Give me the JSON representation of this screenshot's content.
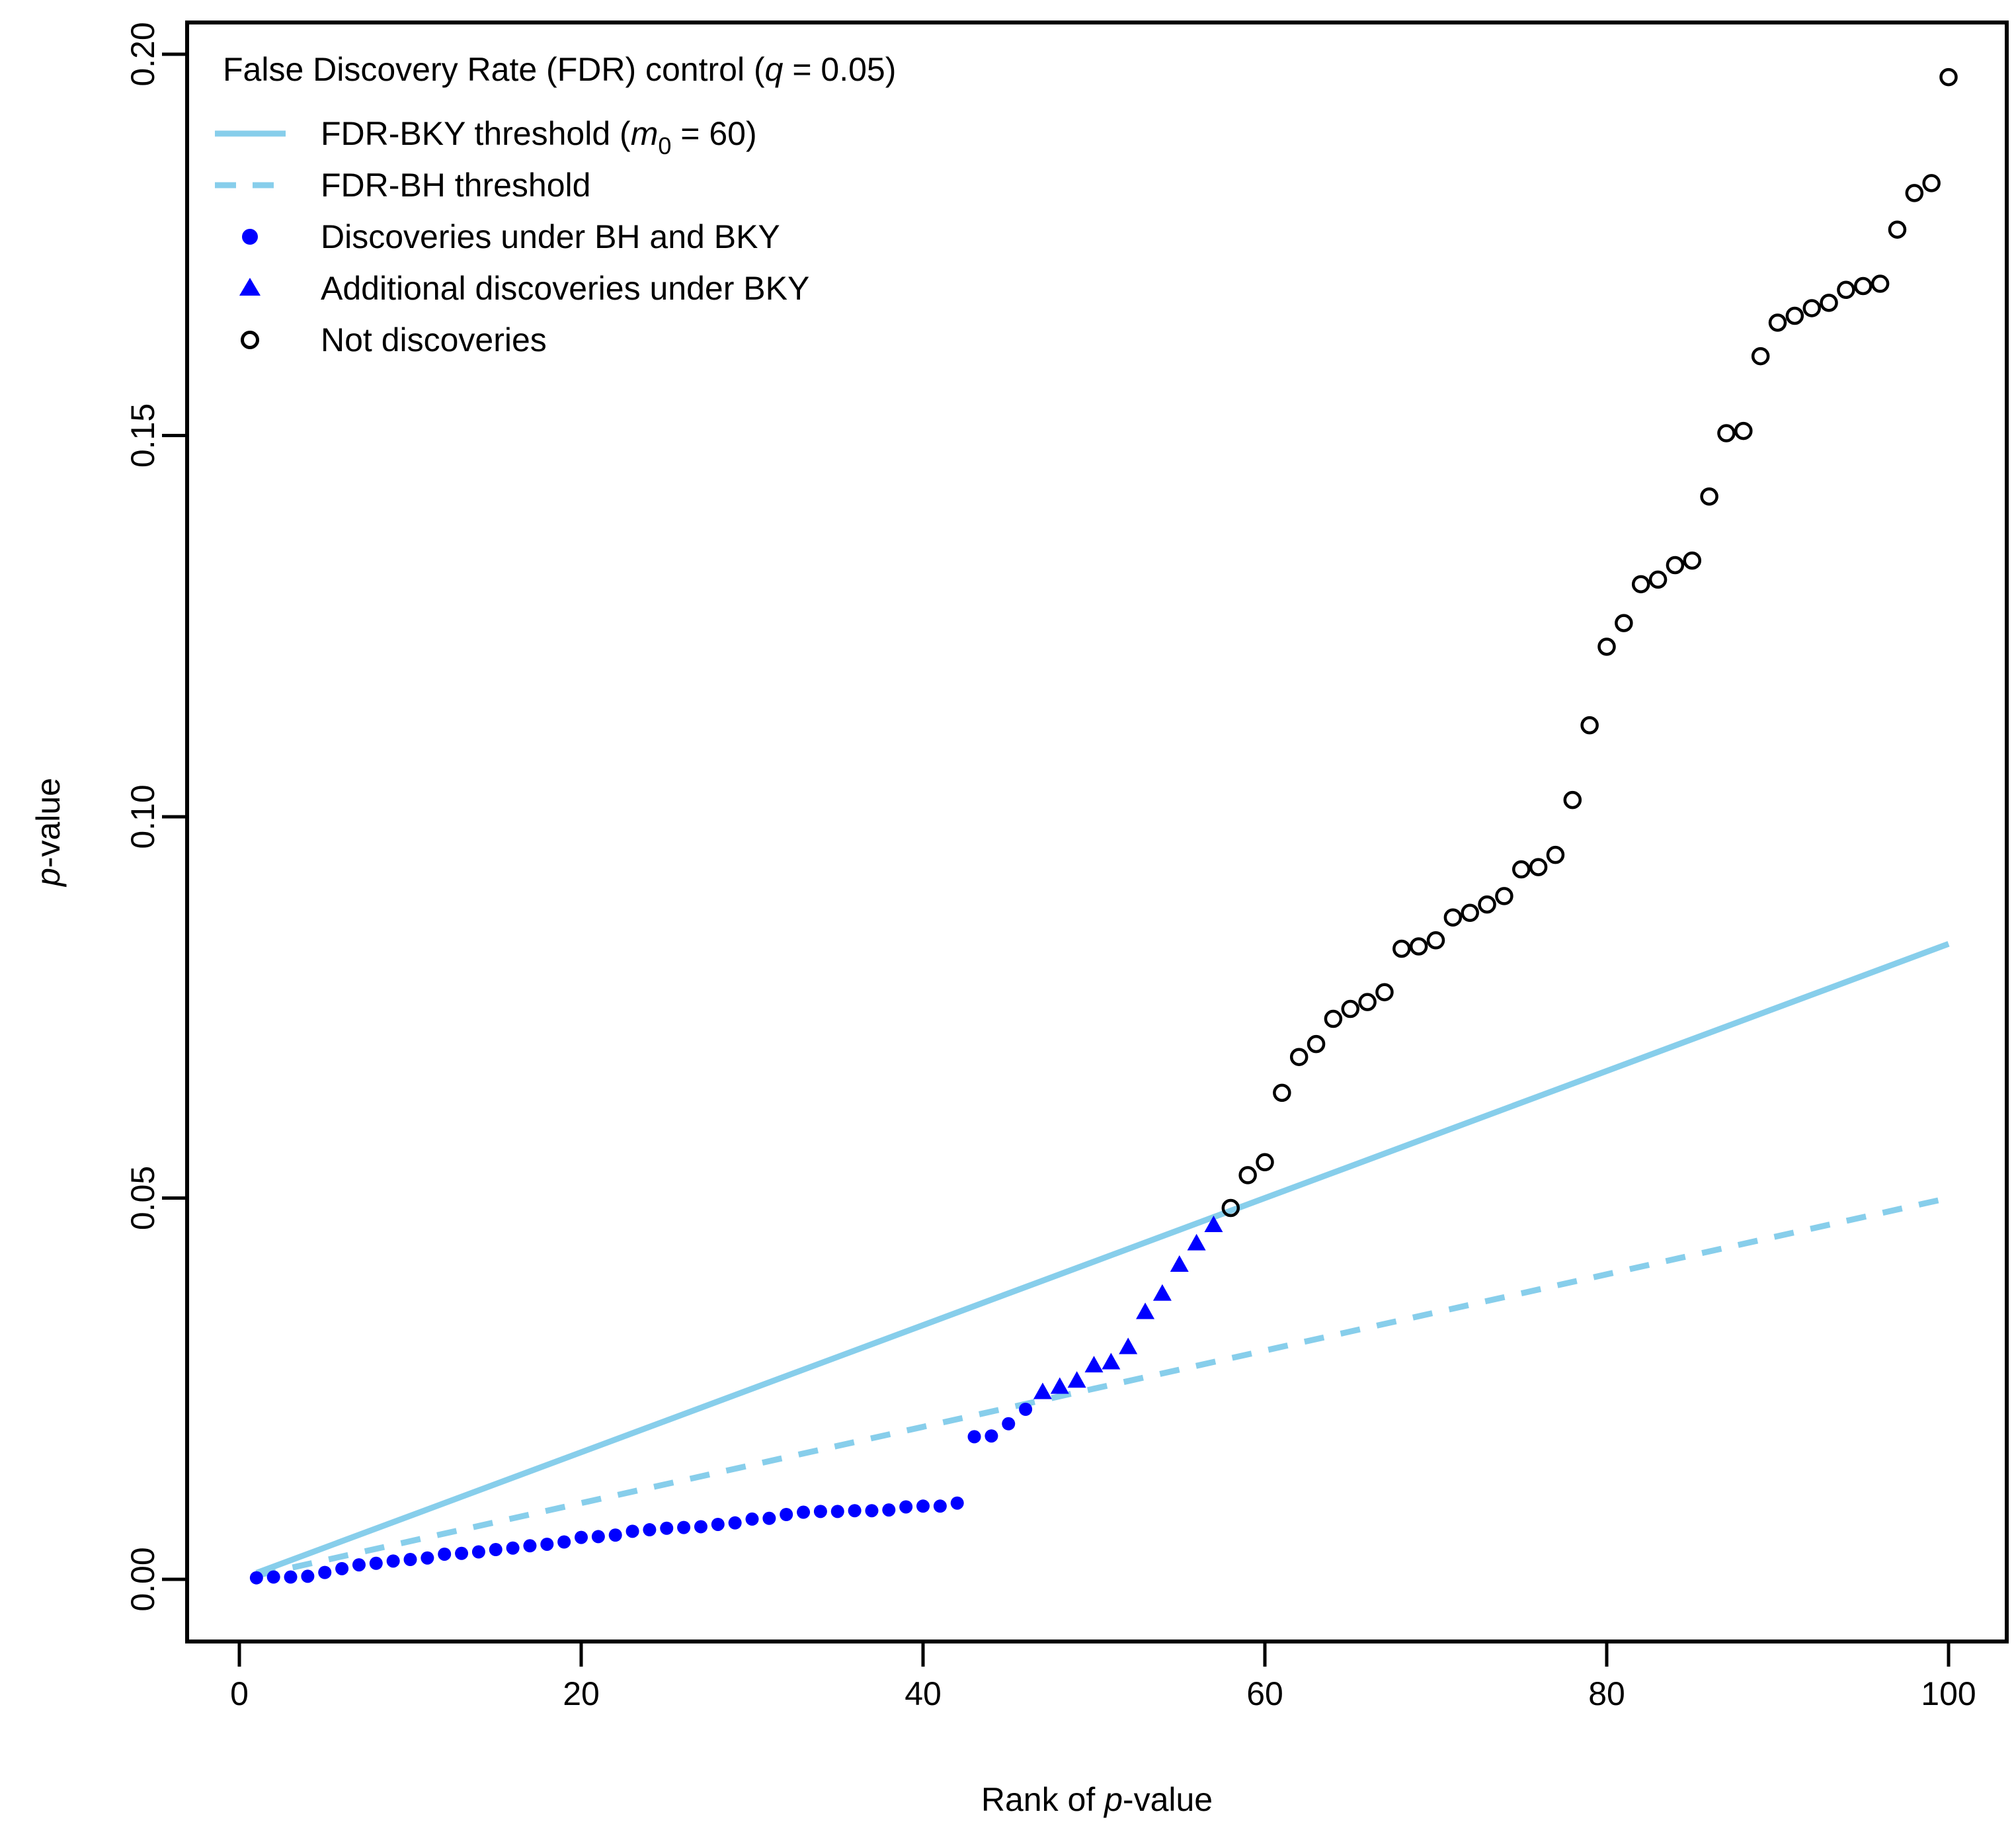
{
  "legend": {
    "title": {
      "pre": "False Discovery Rate (FDR) control (",
      "var": "q",
      "post": " = 0.05)"
    },
    "items": [
      {
        "marker": "solid-line",
        "pre": "FDR-BKY threshold (",
        "var": "m",
        "sub": "0",
        "post": " = 60)"
      },
      {
        "marker": "dashed-line",
        "label": "FDR-BH threshold"
      },
      {
        "marker": "filled-circle",
        "label": "Discoveries under BH and BKY"
      },
      {
        "marker": "filled-triangle",
        "label": "Additional discoveries under BKY"
      },
      {
        "marker": "open-circle",
        "label": "Not discoveries"
      }
    ]
  },
  "axes": {
    "x": {
      "label": {
        "pre": "Rank of ",
        "var": "p",
        "post": "-value"
      },
      "ticks": [
        0,
        20,
        40,
        60,
        80,
        100
      ]
    },
    "y": {
      "label": {
        "var": "p",
        "post": "-value"
      },
      "tick_labels": [
        "0.00",
        "0.05",
        "0.10",
        "0.15",
        "0.20"
      ]
    }
  },
  "colors": {
    "threshold_lines": "#87CEEB",
    "discovery_points": "#0000FF",
    "not_discovery_points": "#000000",
    "background": "#ffffff"
  },
  "chart_data": {
    "type": "scatter",
    "title": "False Discovery Rate (FDR) control (q = 0.05)",
    "xlabel": "Rank of p-value",
    "ylabel": "p-value",
    "xlim": [
      0,
      100
    ],
    "ylim": [
      0,
      0.2
    ],
    "grid": false,
    "legend_position": "top-left",
    "q": 0.05,
    "m0": 60,
    "lines": [
      {
        "name": "FDR-BKY threshold (m0 = 60)",
        "style": "solid",
        "color": "#87CEEB",
        "x": [
          1,
          100
        ],
        "y": [
          0.000833,
          0.083333
        ]
      },
      {
        "name": "FDR-BH threshold",
        "style": "dashed",
        "color": "#87CEEB",
        "x": [
          1,
          100
        ],
        "y": [
          0.0005,
          0.05
        ]
      }
    ],
    "points": [
      {
        "name": "Discoveries under BH and BKY",
        "marker": "filled-circle",
        "color": "#0000FF",
        "start_rank": 1,
        "p": [
          0.0002,
          0.0003,
          0.0003,
          0.0004,
          0.0009,
          0.0014,
          0.0019,
          0.0021,
          0.0024,
          0.0026,
          0.0028,
          0.0033,
          0.0034,
          0.0036,
          0.0039,
          0.0041,
          0.0044,
          0.0046,
          0.0049,
          0.0055,
          0.0056,
          0.0058,
          0.0063,
          0.0065,
          0.0067,
          0.0068,
          0.0069,
          0.0072,
          0.0074,
          0.0079,
          0.008,
          0.0085,
          0.0088,
          0.0089,
          0.0089,
          0.009,
          0.009,
          0.0091,
          0.0095,
          0.0096,
          0.0096,
          0.01,
          0.0187,
          0.0188,
          0.0204,
          0.0223
        ]
      },
      {
        "name": "Additional discoveries under BKY",
        "marker": "filled-triangle",
        "color": "#0000FF",
        "start_rank": 47,
        "p": [
          0.0245,
          0.0252,
          0.026,
          0.028,
          0.0284,
          0.0304,
          0.035,
          0.0374,
          0.0412,
          0.044,
          0.0464
        ]
      },
      {
        "name": "Not discoveries",
        "marker": "open-circle",
        "color": "#000000",
        "start_rank": 58,
        "p": [
          0.0487,
          0.053,
          0.0547,
          0.0638,
          0.0685,
          0.0702,
          0.0735,
          0.0748,
          0.0757,
          0.077,
          0.0827,
          0.083,
          0.0838,
          0.0868,
          0.0874,
          0.0885,
          0.0896,
          0.0931,
          0.0934,
          0.095,
          0.1022,
          0.112,
          0.1223,
          0.1254,
          0.1305,
          0.1311,
          0.133,
          0.1336,
          0.142,
          0.1503,
          0.1506,
          0.1604,
          0.1648,
          0.1657,
          0.1667,
          0.1674,
          0.1691,
          0.1696,
          0.1699,
          0.177,
          0.1818,
          0.1831,
          0.197
        ]
      }
    ]
  }
}
